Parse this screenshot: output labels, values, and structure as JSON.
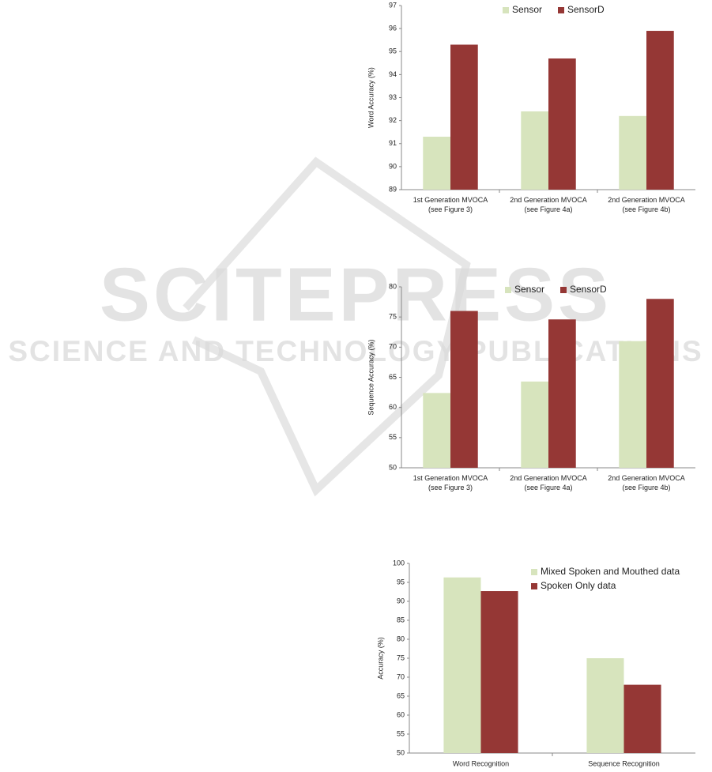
{
  "chart_data": [
    {
      "type": "bar",
      "ylabel": "Word Accuracy (%)",
      "categories": [
        "1st Generation MVOCA\n(see Figure 3)",
        "2nd Generation MVOCA\n(see Figure 4a)",
        "2nd Generation MVOCA\n(see Figure 4b)"
      ],
      "series": [
        {
          "name": "Sensor",
          "color": "#d7e4bd",
          "values": [
            91.3,
            92.4,
            92.2
          ]
        },
        {
          "name": "SensorD",
          "color": "#953735",
          "values": [
            95.3,
            94.7,
            95.9
          ]
        }
      ],
      "ylim": [
        89,
        97
      ],
      "yticks": [
        89,
        90,
        91,
        92,
        93,
        94,
        95,
        96,
        97
      ],
      "legend": "top"
    },
    {
      "type": "bar",
      "ylabel": "Sequence Accuracy (%)",
      "categories": [
        "1st Generation MVOCA\n(see Figure 3)",
        "2nd Generation MVOCA\n(see Figure 4a)",
        "2nd Generation MVOCA\n(see Figure 4b)"
      ],
      "series": [
        {
          "name": "Sensor",
          "color": "#d7e4bd",
          "values": [
            62.4,
            64.3,
            71
          ]
        },
        {
          "name": "SensorD",
          "color": "#953735",
          "values": [
            76,
            74.6,
            78
          ]
        }
      ],
      "ylim": [
        50,
        80
      ],
      "yticks": [
        50,
        55,
        60,
        65,
        70,
        75,
        80
      ],
      "legend": "top"
    },
    {
      "type": "bar",
      "ylabel": "Accuracy (%)",
      "categories": [
        "Word Recognition",
        "Sequence Recognition"
      ],
      "series": [
        {
          "name": "Mixed Spoken and Mouthed data",
          "color": "#d7e4bd",
          "values": [
            96.3,
            75
          ]
        },
        {
          "name": "Spoken Only data",
          "color": "#953735",
          "values": [
            92.7,
            68
          ]
        }
      ],
      "ylim": [
        50,
        100
      ],
      "yticks": [
        50,
        55,
        60,
        65,
        70,
        75,
        80,
        85,
        90,
        95,
        100
      ],
      "legend": "upper right"
    }
  ],
  "watermark": {
    "title": "SCITEPRESS",
    "subtitle": "SCIENCE AND TECHNOLOGY PUBLICATIONS"
  }
}
